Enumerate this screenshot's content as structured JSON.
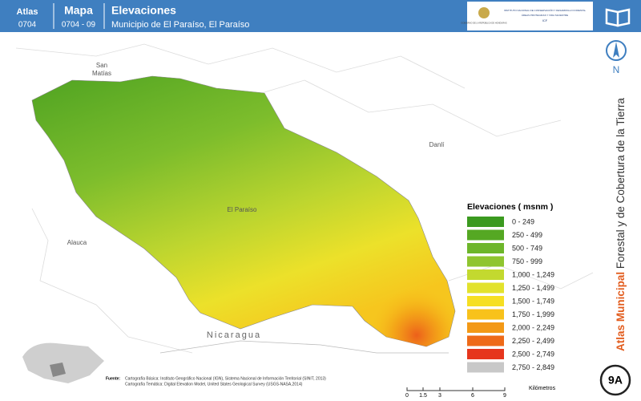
{
  "header": {
    "atlas_label": "Atlas",
    "atlas_code": "0704",
    "map_label": "Mapa",
    "map_code": "0704 - 09",
    "title": "Elevaciones",
    "subtitle": "Municipio de El Paraíso, El Paraíso"
  },
  "logos": {
    "government": "GOBIERNO DE LA REPÚBLICA DE HONDURAS",
    "institute": "INSTITUTO NACIONAL DE CONSERVACIÓN Y DESARROLLO FORESTAL",
    "institute_line2": "ÁREAS PROTEGIDAS Y VIDA SILVESTRE",
    "institute_acronym": "ICF"
  },
  "map": {
    "places": {
      "san_matias": [
        "San",
        "Matías"
      ],
      "danli": "Danlí",
      "el_paraiso": "El Paraíso",
      "alauca": "Alauca",
      "nicaragua": "Nicaragua"
    }
  },
  "legend": {
    "title": "Elevaciones ( msnm )",
    "items": [
      {
        "label": "0 - 249",
        "color": "#3b9a1f"
      },
      {
        "label": "250 - 499",
        "color": "#55a823"
      },
      {
        "label": "500 - 749",
        "color": "#6db62a"
      },
      {
        "label": "750 - 999",
        "color": "#8fc52f"
      },
      {
        "label": "1,000 - 1,249",
        "color": "#c3d92f"
      },
      {
        "label": "1,250 - 1,499",
        "color": "#e2e22c"
      },
      {
        "label": "1,500 - 1,749",
        "color": "#f6df22"
      },
      {
        "label": "1,750 - 1,999",
        "color": "#f8c21b"
      },
      {
        "label": "2,000 - 2,249",
        "color": "#f39916"
      },
      {
        "label": "2,250 - 2,499",
        "color": "#ee6a18"
      },
      {
        "label": "2,500 - 2,749",
        "color": "#e6361d"
      },
      {
        "label": "2,750 - 2,849",
        "color": "#c8c8c8"
      }
    ]
  },
  "sidebar": {
    "north": "N",
    "series_bold": "Atlas Municipal",
    "series_rest": "Forestal y de Cobertura de la Tierra",
    "page": "9A"
  },
  "footer": {
    "source_label": "Fuente:",
    "source_lines": [
      "Cartografía Básica: Instituto Geográfico Nacional (IGN), Sistema Nacional de Información Territorial (SINIT, 2013)",
      "Cartografía Temática: Digital Elevation Model, United States Geological Survey (USGS-NASA,2014)"
    ]
  },
  "scale_bar": {
    "ticks": [
      "0",
      "1.5",
      "3",
      "6",
      "9"
    ],
    "unit": "Kilómetros"
  }
}
